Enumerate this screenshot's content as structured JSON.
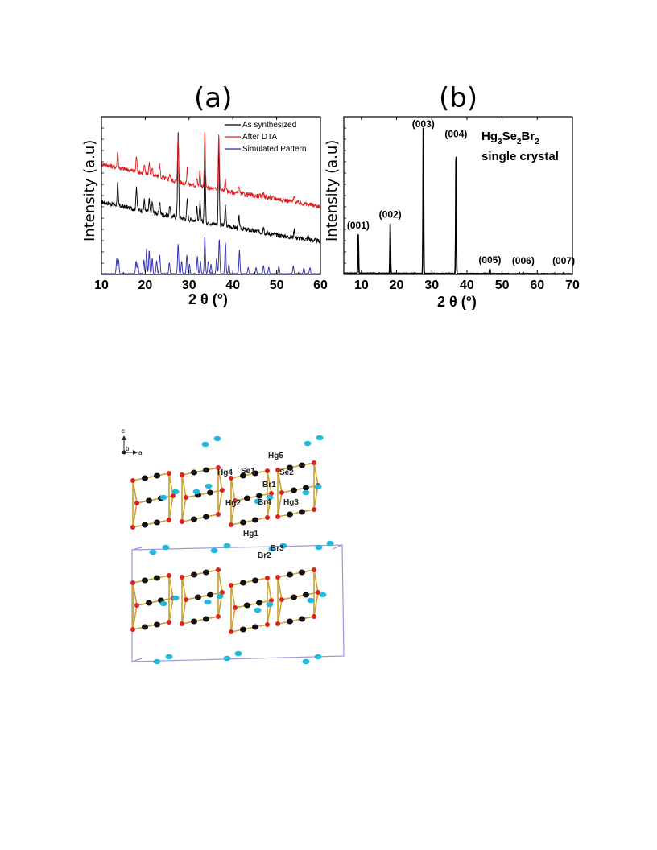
{
  "panels": {
    "a": {
      "label": "(a)"
    },
    "b": {
      "label": "(b)"
    }
  },
  "chart_data": [
    {
      "type": "line",
      "panel": "(a)",
      "xlabel": "2 θ (°)",
      "ylabel": "Intensity (a.u)",
      "xlim": [
        10,
        60
      ],
      "xticks": [
        10,
        20,
        30,
        40,
        50,
        60
      ],
      "legend_position": "top-right",
      "series": [
        {
          "name": "As synthesized",
          "color": "#000000",
          "baseline": [
            [
              10,
              0.46
            ],
            [
              20,
              0.4
            ],
            [
              30,
              0.35
            ],
            [
              40,
              0.3
            ],
            [
              50,
              0.25
            ],
            [
              60,
              0.21
            ]
          ],
          "peaks": [
            [
              13.7,
              0.14
            ],
            [
              18.0,
              0.15
            ],
            [
              19.8,
              0.07
            ],
            [
              20.9,
              0.08
            ],
            [
              21.6,
              0.07
            ],
            [
              23.3,
              0.08
            ],
            [
              25.6,
              0.06
            ],
            [
              27.5,
              0.55
            ],
            [
              29.6,
              0.13
            ],
            [
              31.8,
              0.08
            ],
            [
              32.5,
              0.12
            ],
            [
              33.6,
              0.5
            ],
            [
              36.8,
              0.5
            ],
            [
              38.3,
              0.13
            ],
            [
              41.4,
              0.07
            ],
            [
              47.0,
              0.04
            ],
            [
              54.0,
              0.05
            ],
            [
              57.2,
              0.03
            ]
          ]
        },
        {
          "name": "After DTA",
          "color": "#e02020",
          "baseline": [
            [
              10,
              0.7
            ],
            [
              20,
              0.64
            ],
            [
              30,
              0.57
            ],
            [
              40,
              0.52
            ],
            [
              50,
              0.48
            ],
            [
              60,
              0.43
            ]
          ],
          "peaks": [
            [
              13.7,
              0.1
            ],
            [
              18.0,
              0.1
            ],
            [
              19.8,
              0.05
            ],
            [
              20.9,
              0.08
            ],
            [
              21.6,
              0.05
            ],
            [
              23.3,
              0.08
            ],
            [
              25.6,
              0.04
            ],
            [
              27.5,
              0.3
            ],
            [
              29.6,
              0.1
            ],
            [
              31.8,
              0.05
            ],
            [
              32.5,
              0.1
            ],
            [
              33.6,
              0.35
            ],
            [
              36.8,
              0.35
            ],
            [
              38.3,
              0.08
            ],
            [
              41.4,
              0.05
            ],
            [
              47.0,
              0.03
            ],
            [
              54.0,
              0.04
            ]
          ]
        },
        {
          "name": "Simulated Pattern",
          "color": "#2a2ab0",
          "baseline": [
            [
              10,
              0.005
            ],
            [
              60,
              0.005
            ]
          ],
          "peaks": [
            [
              13.5,
              0.1
            ],
            [
              13.9,
              0.09
            ],
            [
              17.9,
              0.08
            ],
            [
              18.3,
              0.07
            ],
            [
              19.7,
              0.09
            ],
            [
              20.3,
              0.16
            ],
            [
              20.9,
              0.15
            ],
            [
              21.6,
              0.1
            ],
            [
              22.6,
              0.08
            ],
            [
              23.3,
              0.12
            ],
            [
              25.5,
              0.07
            ],
            [
              27.5,
              0.19
            ],
            [
              28.3,
              0.08
            ],
            [
              29.5,
              0.12
            ],
            [
              30.1,
              0.06
            ],
            [
              31.9,
              0.11
            ],
            [
              32.6,
              0.08
            ],
            [
              33.6,
              0.24
            ],
            [
              34.4,
              0.08
            ],
            [
              35.0,
              0.06
            ],
            [
              36.3,
              0.1
            ],
            [
              36.9,
              0.22
            ],
            [
              38.3,
              0.2
            ],
            [
              39.1,
              0.06
            ],
            [
              41.5,
              0.15
            ],
            [
              43.5,
              0.04
            ],
            [
              45.3,
              0.04
            ],
            [
              47.0,
              0.05
            ],
            [
              48.2,
              0.04
            ],
            [
              50.5,
              0.05
            ],
            [
              53.8,
              0.05
            ],
            [
              56.2,
              0.04
            ],
            [
              57.6,
              0.04
            ]
          ]
        }
      ]
    },
    {
      "type": "line",
      "panel": "(b)",
      "xlabel": "2 θ (°)",
      "ylabel": "Intensity (a.u)",
      "xlim": [
        5,
        70
      ],
      "xticks": [
        10,
        20,
        30,
        40,
        50,
        60,
        70
      ],
      "annotation": {
        "formula": [
          "Hg",
          "3",
          "Se",
          "2",
          "Br",
          "2"
        ],
        "text": "single crystal"
      },
      "series": [
        {
          "name": "",
          "color": "#000000",
          "baseline": [
            [
              5,
              0.008
            ],
            [
              70,
              0.004
            ]
          ],
          "peaks": [
            [
              9.1,
              0.25
            ],
            [
              18.2,
              0.32
            ],
            [
              27.6,
              1.0
            ],
            [
              36.9,
              0.83
            ],
            [
              46.5,
              0.03
            ],
            [
              56.0,
              0.008
            ],
            [
              67.5,
              0.008
            ]
          ]
        }
      ],
      "peak_labels": [
        {
          "x": 9.1,
          "text": "(001)"
        },
        {
          "x": 18.2,
          "text": "(002)"
        },
        {
          "x": 27.6,
          "text": "(003)"
        },
        {
          "x": 36.9,
          "text": "(004)"
        },
        {
          "x": 46.5,
          "text": "(005)"
        },
        {
          "x": 56.0,
          "text": "(006)"
        },
        {
          "x": 67.5,
          "text": "(007)"
        }
      ]
    }
  ],
  "structure": {
    "axes": {
      "c": "c",
      "b": "b",
      "a": "a"
    },
    "labels": [
      "Hg5",
      "Hg4",
      "Se1",
      "Se2",
      "Br1",
      "Hg2",
      "Br4",
      "Hg3",
      "Hg1",
      "Br3",
      "Br2"
    ],
    "colors": {
      "hg": "#111111",
      "se": "#dd2222",
      "br": "#22b8e0",
      "bond": "#c9a230",
      "cell": "#9a9ad8"
    }
  }
}
